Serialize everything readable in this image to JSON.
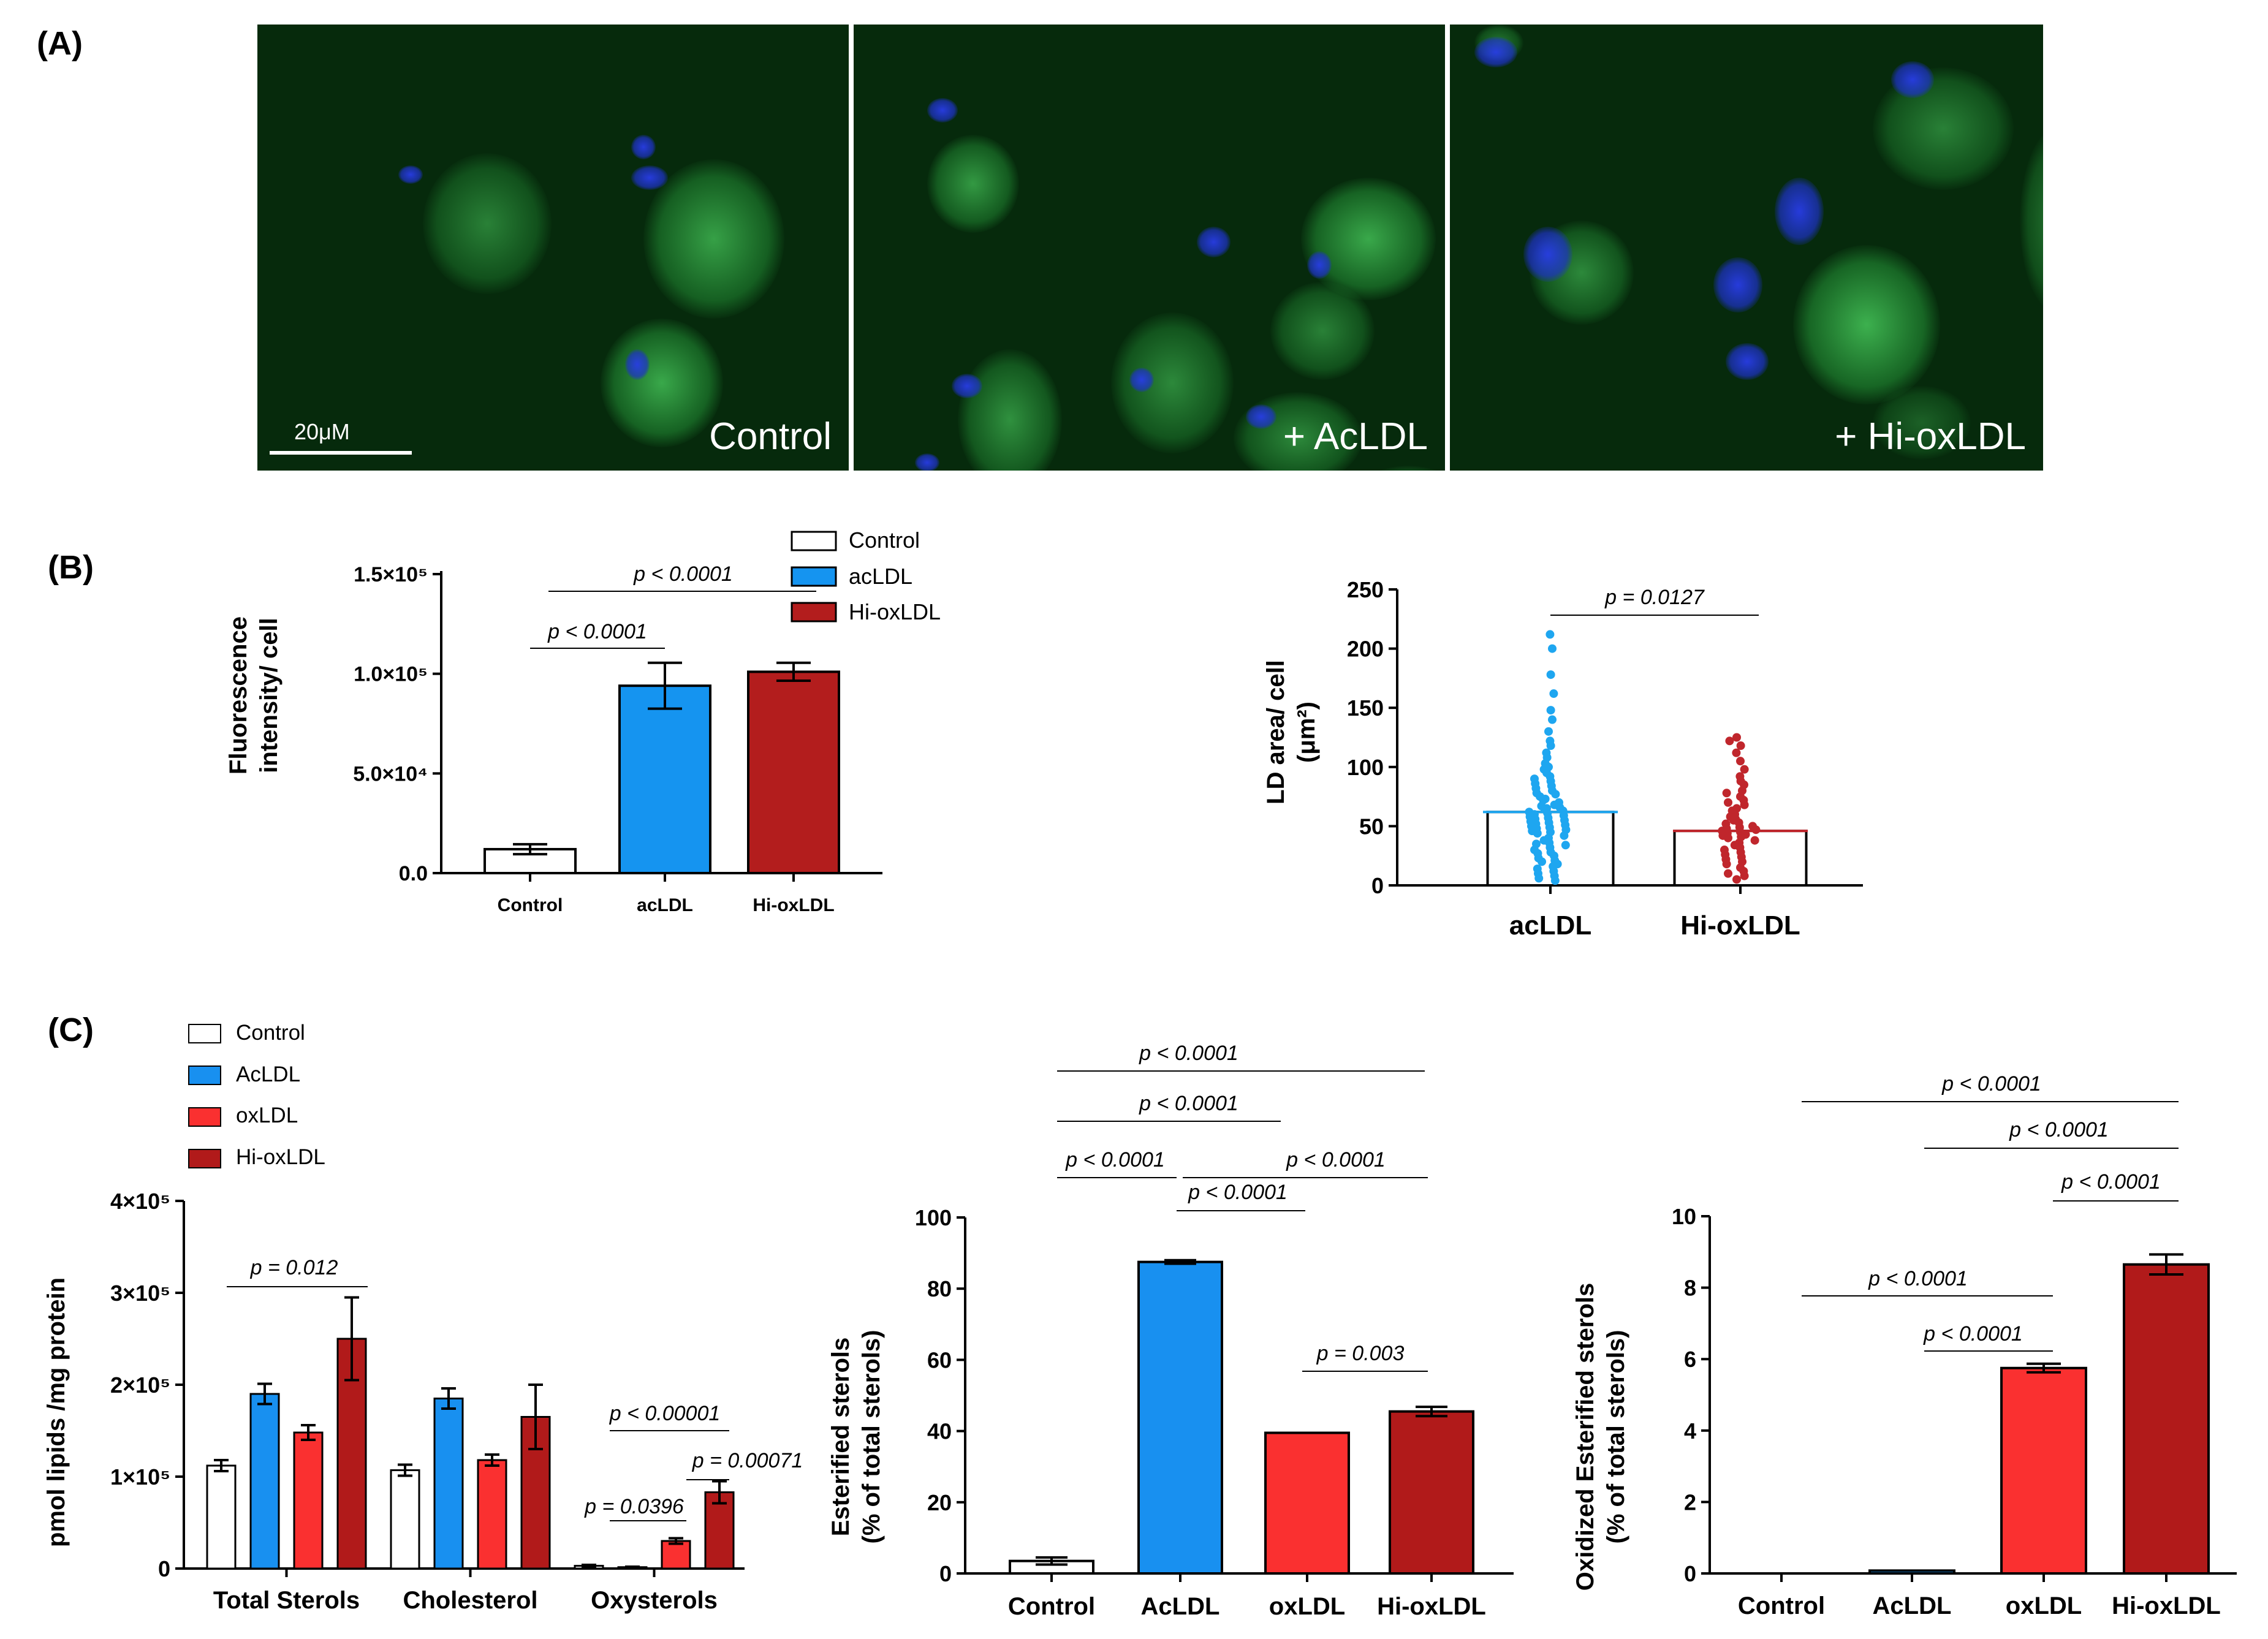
{
  "panels": {
    "A": "(A)",
    "B": "(B)",
    "C": "(C)"
  },
  "micrographs": {
    "labels": [
      "Control",
      "+ AcLDL",
      "+ Hi-oxLDL"
    ],
    "scale_bar": "20μM",
    "colors": {
      "background": "#062a0c",
      "lipid": "#2fb54a",
      "nucleus": "#1e33c9"
    }
  },
  "colors": {
    "control": "#ffffff",
    "acldl_b": "#1594f0",
    "hioxldl_b": "#b31d1d",
    "acldl_c": "#1890f0",
    "oxldl_c": "#fa3030",
    "hioxldl_c": "#b11a1a",
    "dot_acldl": "#1ea6f0",
    "dot_hioxldl": "#c0262c"
  },
  "chart_data": [
    {
      "id": "B1",
      "type": "bar",
      "categories": [
        "Control",
        "acLDL",
        "Hi-oxLDL"
      ],
      "values": [
        12000,
        94000,
        101000
      ],
      "errors": [
        2500,
        11500,
        4500
      ],
      "ylabel": [
        "Fluorescence",
        "intensity/ cell"
      ],
      "ylim": [
        0,
        150000
      ],
      "yticks": [
        "0.0",
        "5.0×10⁴",
        "1.0×10⁵",
        "1.5×10⁵"
      ],
      "legend": [
        "Control",
        "acLDL",
        "Hi-oxLDL"
      ],
      "annotations": [
        "p < 0.0001",
        "p < 0.0001"
      ]
    },
    {
      "id": "B2",
      "type": "scatter",
      "categories": [
        "acLDL",
        "Hi-oxLDL"
      ],
      "means": [
        62,
        46
      ],
      "ylabel": [
        "LD area/ cell",
        "(μm²)"
      ],
      "ylim": [
        0,
        250
      ],
      "yticks": [
        "0",
        "50",
        "100",
        "150",
        "200",
        "250"
      ],
      "annotations": [
        "p = 0.0127"
      ],
      "points_acldl": [
        212,
        200,
        178,
        162,
        148,
        140,
        130,
        122,
        118,
        112,
        108,
        103,
        100,
        98,
        95,
        92,
        90,
        88,
        86,
        84,
        82,
        80,
        78,
        77,
        75,
        73,
        72,
        70,
        68,
        67,
        66,
        65,
        64,
        63,
        62,
        61,
        60,
        59,
        58,
        57,
        56,
        55,
        54,
        53,
        52,
        51,
        50,
        49,
        48,
        47,
        46,
        45,
        44,
        42,
        40,
        38,
        36,
        35,
        34,
        32,
        30,
        28,
        27,
        25,
        23,
        21,
        20,
        18,
        16,
        14,
        12,
        10,
        8,
        6,
        4
      ],
      "points_hioxldl": [
        125,
        122,
        118,
        112,
        105,
        98,
        92,
        88,
        85,
        80,
        78,
        75,
        72,
        70,
        68,
        65,
        63,
        60,
        58,
        56,
        55,
        53,
        52,
        50,
        49,
        48,
        47,
        46,
        45,
        44,
        43,
        42,
        41,
        40,
        38,
        36,
        34,
        32,
        30,
        28,
        26,
        24,
        22,
        20,
        18,
        15,
        12,
        10,
        8,
        5
      ]
    },
    {
      "id": "C1",
      "type": "bar",
      "categories": [
        "Total Sterols",
        "Cholesterol",
        "Oxysterols"
      ],
      "series": [
        {
          "name": "Control",
          "values": [
            112000,
            107000,
            3000
          ],
          "errors": [
            6000,
            6000,
            1000
          ]
        },
        {
          "name": "AcLDL",
          "values": [
            190000,
            185000,
            1500
          ],
          "errors": [
            11000,
            11000,
            500
          ]
        },
        {
          "name": "oxLDL",
          "values": [
            148000,
            118000,
            30000
          ],
          "errors": [
            8000,
            6000,
            3000
          ]
        },
        {
          "name": "Hi-oxLDL",
          "values": [
            250000,
            165000,
            83000
          ],
          "errors": [
            45000,
            35000,
            12000
          ]
        }
      ],
      "ylabel": "pmol lipids /mg protein",
      "ylim": [
        0,
        400000
      ],
      "yticks": [
        "0",
        "1×10⁵",
        "2×10⁵",
        "3×10⁵",
        "4×10⁵"
      ],
      "legend": [
        "Control",
        "AcLDL",
        "oxLDL",
        "Hi-oxLDL"
      ],
      "annotations": [
        "p = 0.012",
        "p < 0.00001",
        "p = 0.00071",
        "p = 0.0396"
      ]
    },
    {
      "id": "C2",
      "type": "bar",
      "categories": [
        "Control",
        "AcLDL",
        "oxLDL",
        "Hi-oxLDL"
      ],
      "values": [
        3.5,
        87.5,
        39.5,
        45.5
      ],
      "errors": [
        1,
        0.5,
        0.3,
        1.3
      ],
      "ylabel": [
        "Esterified sterols",
        "(% of total sterols)"
      ],
      "ylim": [
        0,
        100
      ],
      "yticks": [
        "0",
        "20",
        "40",
        "60",
        "80",
        "100"
      ],
      "annotations": [
        "p < 0.0001",
        "p < 0.0001",
        "p < 0.0001",
        "p < 0.0001",
        "p < 0.0001",
        "p = 0.003"
      ]
    },
    {
      "id": "C3",
      "type": "bar",
      "categories": [
        "Control",
        "AcLDL",
        "oxLDL",
        "Hi-oxLDL"
      ],
      "values": [
        0,
        0.08,
        5.75,
        8.65
      ],
      "errors": [
        0,
        0.03,
        0.12,
        0.28
      ],
      "ylabel": [
        "Oxidized Esterified sterols",
        "(% of total sterols)"
      ],
      "ylim": [
        0,
        10
      ],
      "yticks": [
        "0",
        "2",
        "4",
        "6",
        "8",
        "10"
      ],
      "annotations": [
        "p < 0.0001",
        "p < 0.0001",
        "p < 0.0001",
        "p < 0.0001",
        "p < 0.0001"
      ]
    }
  ]
}
